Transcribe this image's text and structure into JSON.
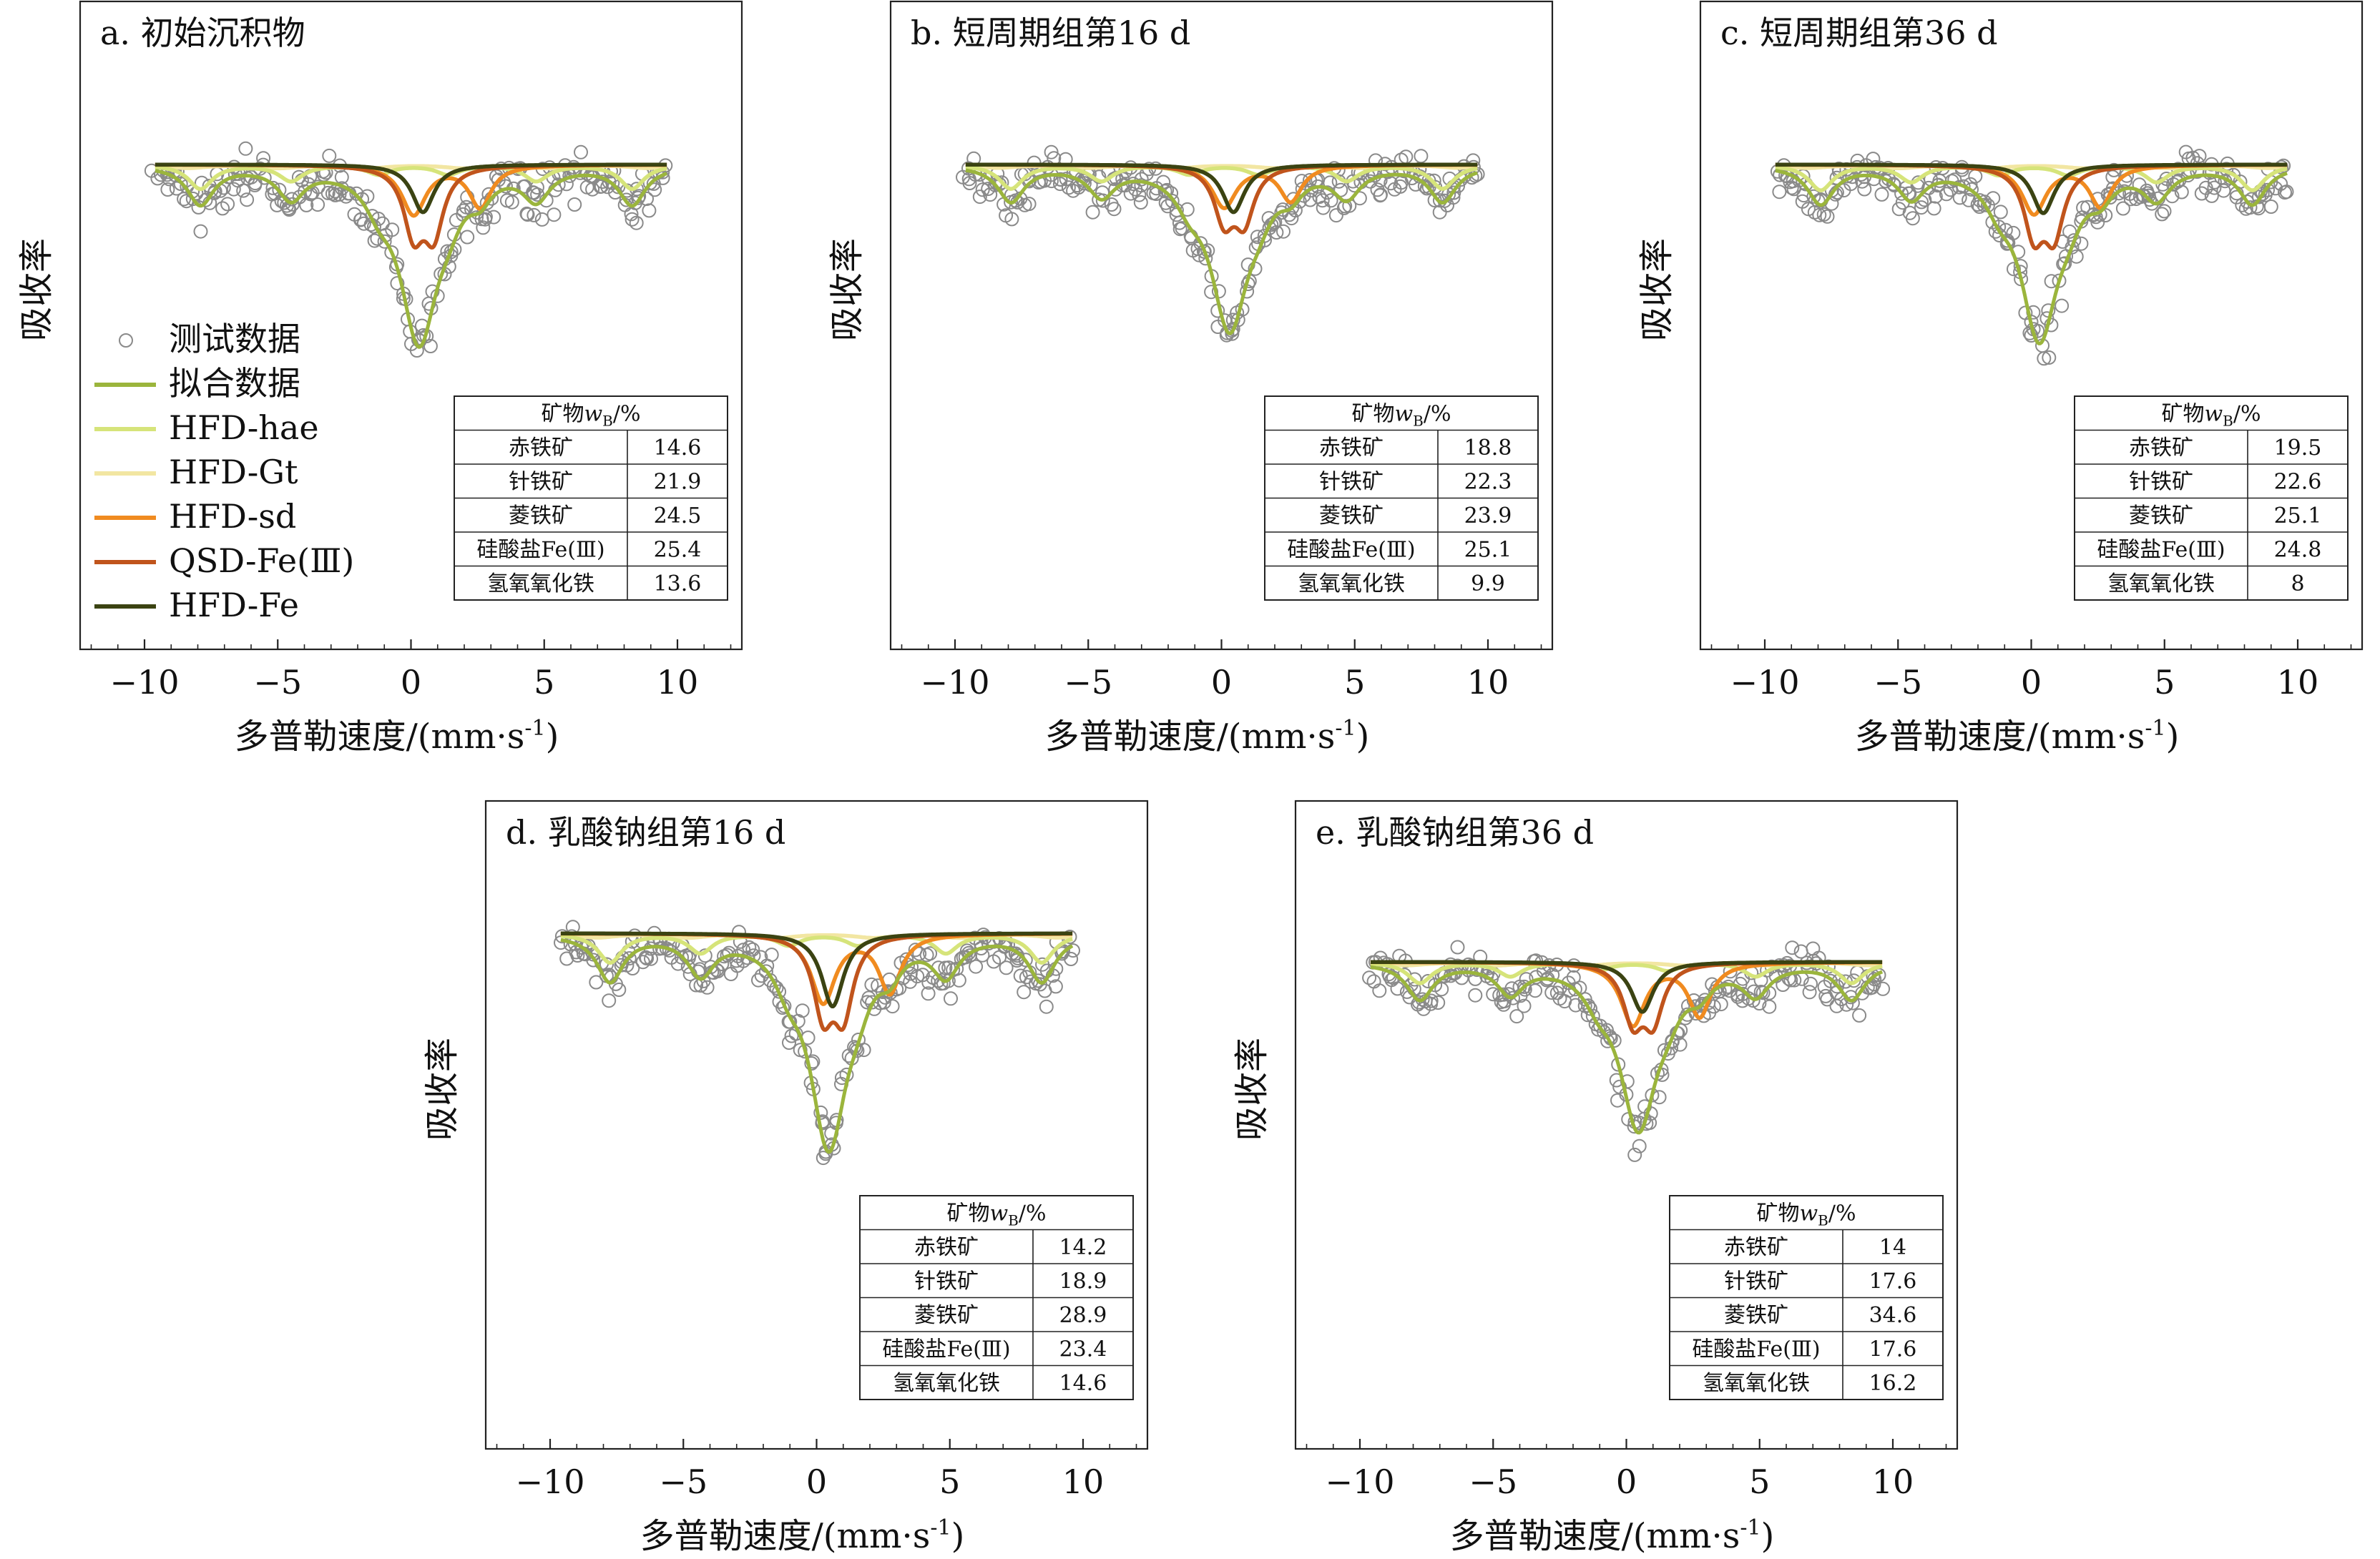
{
  "figure": {
    "ylabel": "吸收率",
    "xlabel": "多普勒速度/(mm·s",
    "xlabel_sup": "-1",
    "xlabel_close": ")",
    "xticks": [
      "−10",
      "−5",
      "0",
      "5",
      "10"
    ],
    "table_header": "矿物",
    "table_header_w": "w",
    "table_header_sub": "B",
    "table_header_unit": "/%",
    "colors": {
      "data": "#8a8a8a",
      "fit": "#9bb53c",
      "hae": "#d6e47a",
      "gt": "#f2e6a2",
      "sd": "#f08b20",
      "qsd": "#c0541c",
      "fe": "#3b4312"
    }
  },
  "legend": [
    {
      "label": "测试数据",
      "key": "data"
    },
    {
      "label": "拟合数据",
      "key": "fit"
    },
    {
      "label": "HFD-hae",
      "key": "hae"
    },
    {
      "label": "HFD-Gt",
      "key": "gt"
    },
    {
      "label": "HFD-sd",
      "key": "sd"
    },
    {
      "label": "QSD-Fe(Ⅲ)",
      "key": "qsd"
    },
    {
      "label": "HFD-Fe",
      "key": "fe"
    }
  ],
  "chart_data": [
    {
      "type": "scatter",
      "title": "a. 初始沉积物",
      "xlabel": "多普勒速度/(mm·s-1)",
      "ylabel": "吸收率",
      "xlim": [
        -12,
        12
      ],
      "table": {
        "columns": [
          "矿物",
          "wB/%"
        ],
        "rows": [
          [
            "赤铁矿",
            "14.6"
          ],
          [
            "针铁矿",
            "21.9"
          ],
          [
            "菱铁矿",
            "24.5"
          ],
          [
            "硅酸盐Fe(Ⅲ)",
            "25.4"
          ],
          [
            "氢氧氧化铁",
            "13.6"
          ]
        ]
      }
    },
    {
      "type": "scatter",
      "title": "b. 短周期组第16 d",
      "xlabel": "多普勒速度/(mm·s-1)",
      "ylabel": "吸收率",
      "xlim": [
        -12,
        12
      ],
      "table": {
        "columns": [
          "矿物",
          "wB/%"
        ],
        "rows": [
          [
            "赤铁矿",
            "18.8"
          ],
          [
            "针铁矿",
            "22.3"
          ],
          [
            "菱铁矿",
            "23.9"
          ],
          [
            "硅酸盐Fe(Ⅲ)",
            "25.1"
          ],
          [
            "氢氧氧化铁",
            "9.9"
          ]
        ]
      }
    },
    {
      "type": "scatter",
      "title": "c. 短周期组第36 d",
      "xlabel": "多普勒速度/(mm·s-1)",
      "ylabel": "吸收率",
      "xlim": [
        -12,
        12
      ],
      "table": {
        "columns": [
          "矿物",
          "wB/%"
        ],
        "rows": [
          [
            "赤铁矿",
            "19.5"
          ],
          [
            "针铁矿",
            "22.6"
          ],
          [
            "菱铁矿",
            "25.1"
          ],
          [
            "硅酸盐Fe(Ⅲ)",
            "24.8"
          ],
          [
            "氢氧氧化铁",
            "8"
          ]
        ]
      }
    },
    {
      "type": "scatter",
      "title": "d. 乳酸钠组第16 d",
      "xlabel": "多普勒速度/(mm·s-1)",
      "ylabel": "吸收率",
      "xlim": [
        -12,
        12
      ],
      "table": {
        "columns": [
          "矿物",
          "wB/%"
        ],
        "rows": [
          [
            "赤铁矿",
            "14.2"
          ],
          [
            "针铁矿",
            "18.9"
          ],
          [
            "菱铁矿",
            "28.9"
          ],
          [
            "硅酸盐Fe(Ⅲ)",
            "23.4"
          ],
          [
            "氢氧氧化铁",
            "14.6"
          ]
        ]
      }
    },
    {
      "type": "scatter",
      "title": "e. 乳酸钠组第36 d",
      "xlabel": "多普勒速度/(mm·s-1)",
      "ylabel": "吸收率",
      "xlim": [
        -12,
        12
      ],
      "table": {
        "columns": [
          "矿物",
          "wB/%"
        ],
        "rows": [
          [
            "赤铁矿",
            "14"
          ],
          [
            "针铁矿",
            "17.6"
          ],
          [
            "菱铁矿",
            "34.6"
          ],
          [
            "硅酸盐Fe(Ⅲ)",
            "17.6"
          ],
          [
            "氢氧氧化铁",
            "16.2"
          ]
        ]
      }
    }
  ]
}
